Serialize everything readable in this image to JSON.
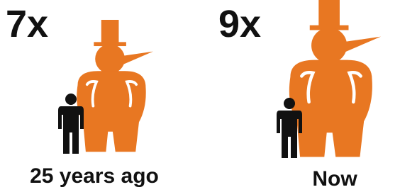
{
  "panels": [
    {
      "multiplier": "7x",
      "label": "25 years ago"
    },
    {
      "multiplier": "9x",
      "label": "Now"
    }
  ]
}
